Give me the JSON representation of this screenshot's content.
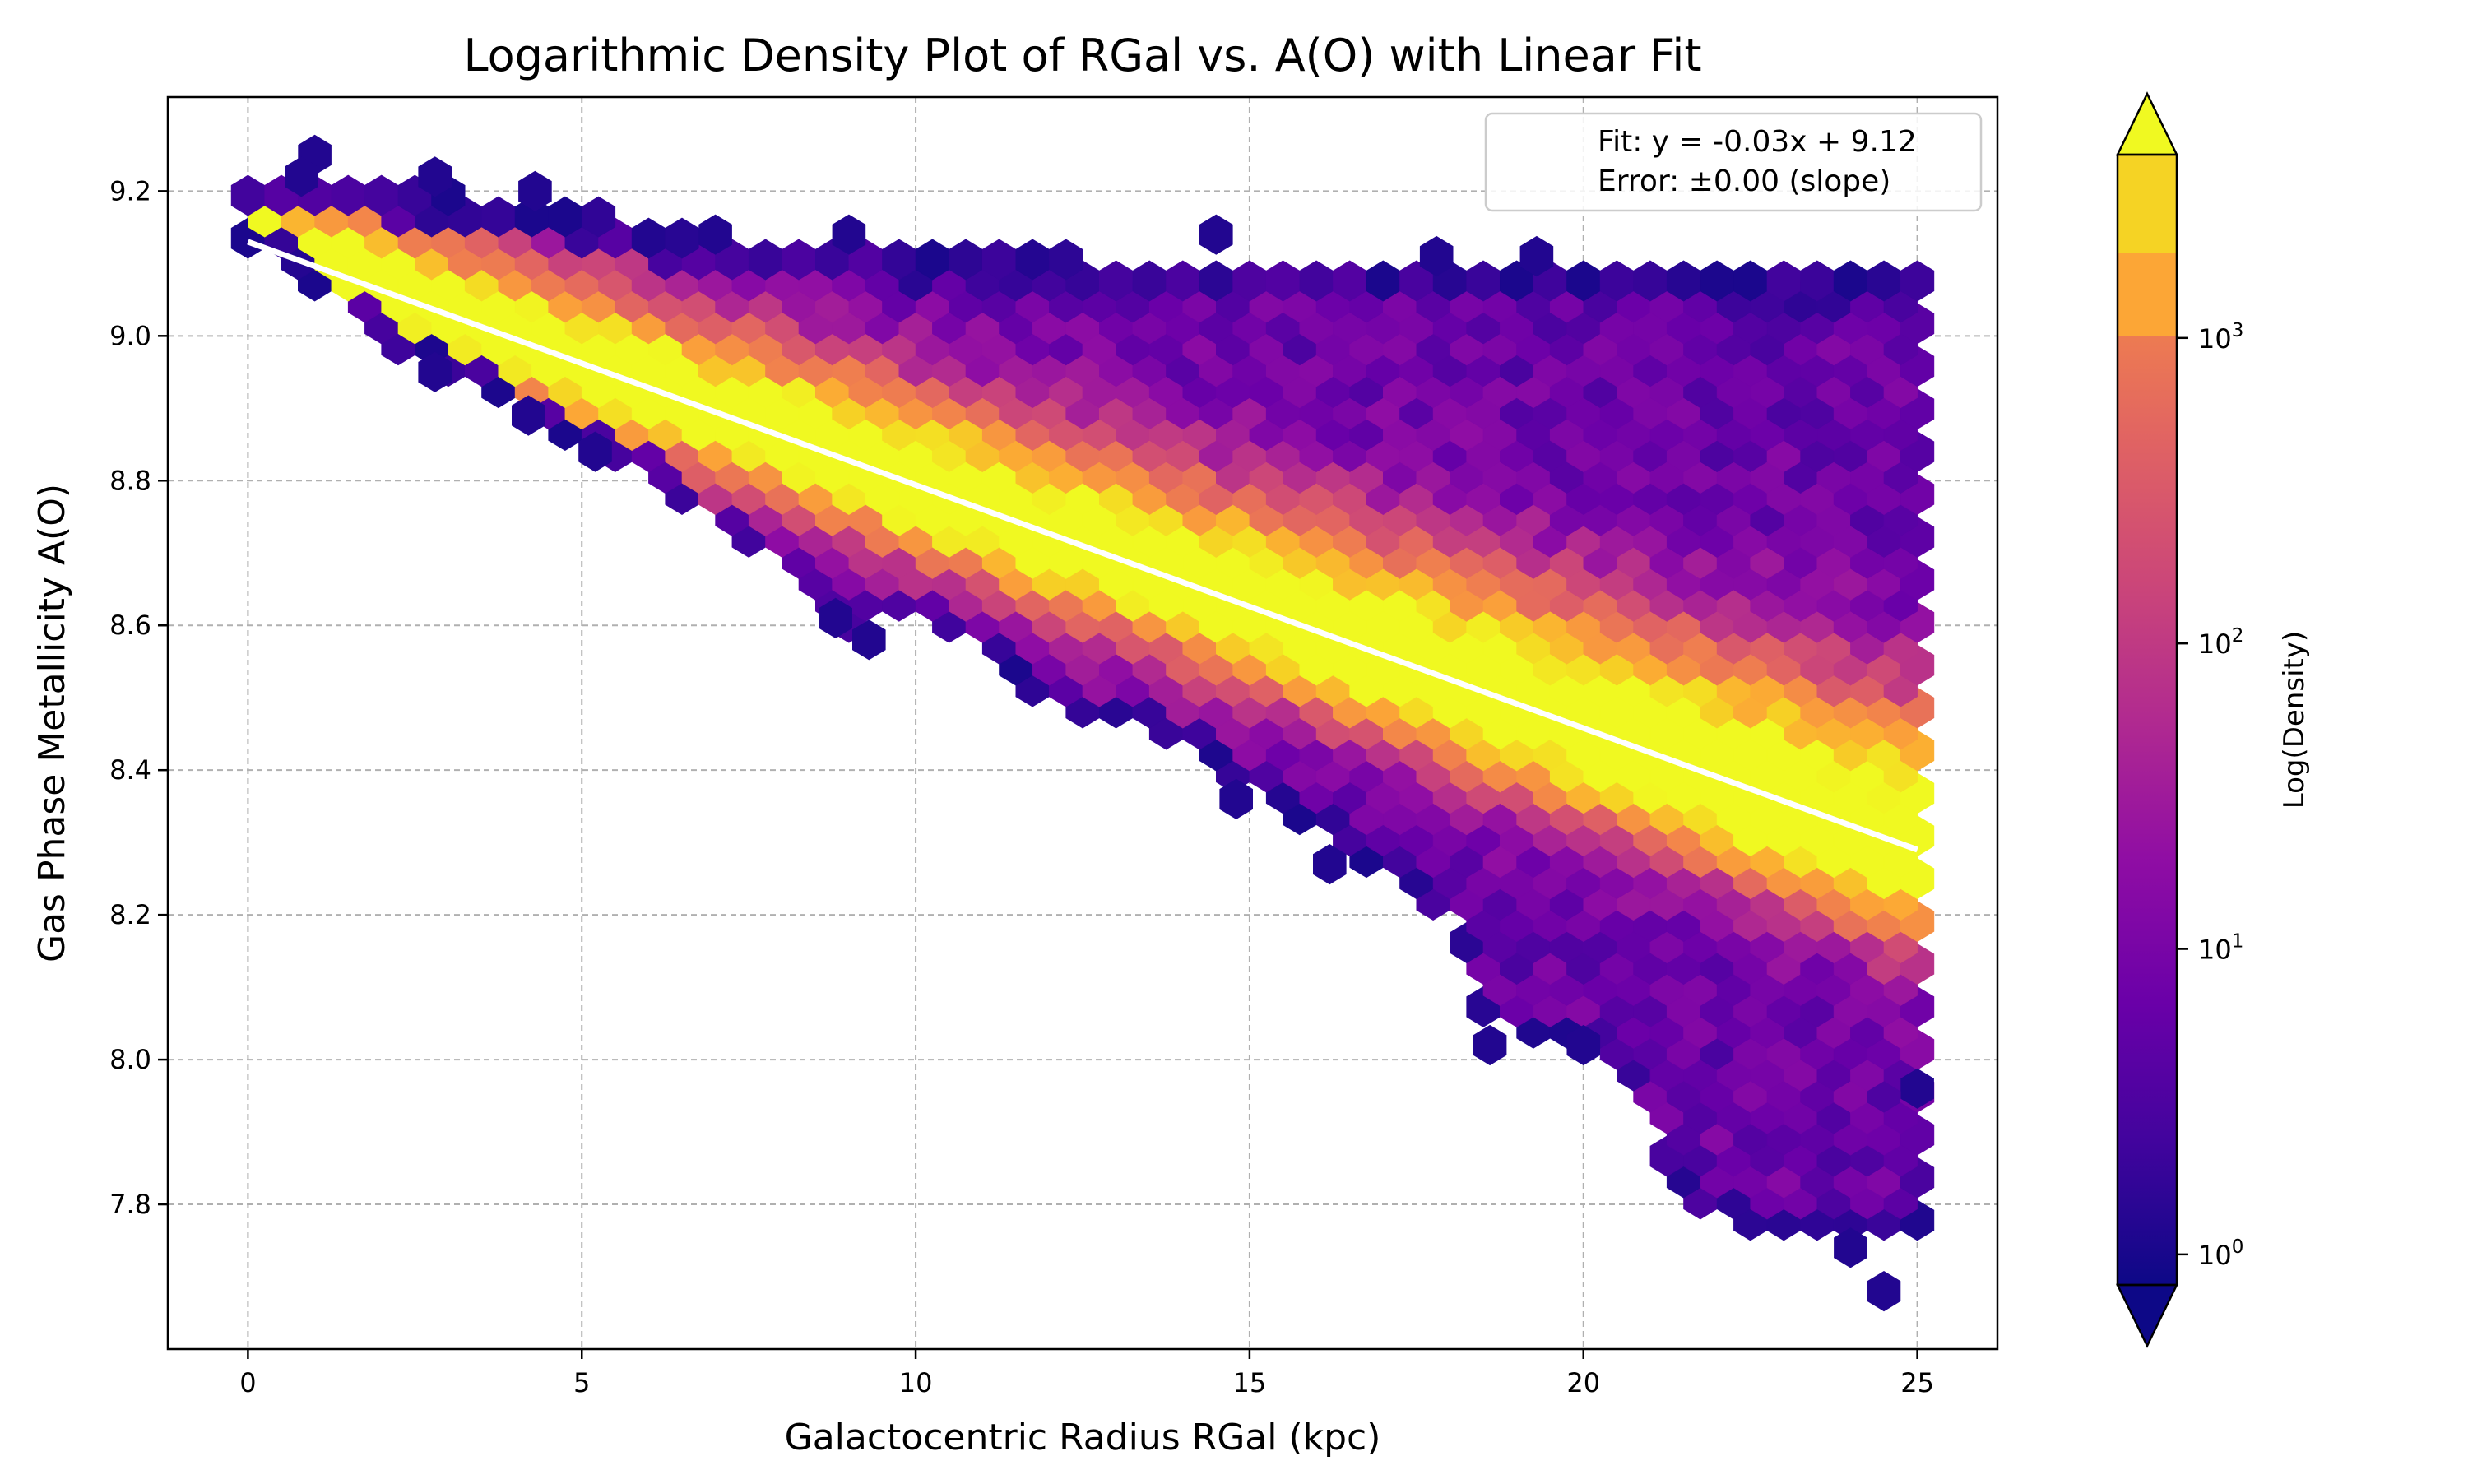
{
  "chart_data": {
    "type": "hexbin",
    "title": "Logarithmic Density Plot of RGal vs. A(O) with Linear Fit",
    "xlabel": "Galactocentric Radius RGal (kpc)",
    "ylabel": "Gas Phase Metallicity A(O)",
    "xlim": [
      -1.2,
      26.2
    ],
    "ylim": [
      7.6,
      9.33
    ],
    "xticks": [
      0,
      5,
      10,
      15,
      20,
      25
    ],
    "yticks": [
      7.8,
      8.0,
      8.2,
      8.4,
      8.6,
      8.8,
      9.0,
      9.2
    ],
    "grid": true,
    "grid_style": "dashed",
    "colormap": "plasma",
    "density_scale": "log",
    "hexbin_gridsize": 50,
    "colorbar": {
      "label": "Log(Density)",
      "ticks": [
        "10^0",
        "10^1",
        "10^2",
        "10^3"
      ],
      "tick_values": [
        0,
        1,
        2,
        3
      ],
      "range_log10": [
        -0.1,
        3.6
      ],
      "extend": "both"
    },
    "fit": {
      "slope": -0.03,
      "intercept": 9.12,
      "line_color": "#ffffff",
      "x_range": [
        0,
        25
      ],
      "y_range": [
        9.13,
        8.29
      ]
    },
    "legend": {
      "position": "upper right",
      "lines": [
        "Fit: y = -0.03x + 9.12",
        "Error: ±0.00 (slope)"
      ]
    },
    "density_model": {
      "x_min": 0,
      "x_max": 25,
      "ridge": [
        [
          0,
          9.13
        ],
        [
          25,
          8.29
        ]
      ],
      "upper_edge": [
        [
          0,
          9.2
        ],
        [
          1,
          9.22
        ],
        [
          5,
          9.17
        ],
        [
          7,
          9.13
        ],
        [
          10,
          9.11
        ],
        [
          15,
          9.1
        ],
        [
          20,
          9.09
        ],
        [
          25,
          9.08
        ]
      ],
      "lower_edge": [
        [
          0,
          9.13
        ],
        [
          2,
          9.0
        ],
        [
          4,
          8.9
        ],
        [
          6,
          8.8
        ],
        [
          8,
          8.68
        ],
        [
          9,
          8.6
        ],
        [
          10,
          8.62
        ],
        [
          11,
          8.56
        ],
        [
          12,
          8.49
        ],
        [
          13,
          8.47
        ],
        [
          14,
          8.44
        ],
        [
          15,
          8.38
        ],
        [
          16,
          8.32
        ],
        [
          17,
          8.26
        ],
        [
          18,
          8.2
        ],
        [
          18.5,
          8.05
        ],
        [
          19.5,
          8.03
        ],
        [
          20.5,
          8.0
        ],
        [
          21.5,
          7.82
        ],
        [
          22,
          7.78
        ],
        [
          24,
          7.75
        ],
        [
          25,
          7.76
        ]
      ],
      "peak_log_density": 3.5,
      "ridge_width_start": 0.05,
      "ridge_width_end": 0.1,
      "isolated_cells": [
        [
          1.0,
          9.25
        ],
        [
          0.8,
          9.22
        ],
        [
          2.8,
          9.22
        ],
        [
          4.3,
          9.2
        ],
        [
          7.0,
          9.14
        ],
        [
          9.0,
          9.14
        ],
        [
          14.5,
          9.14
        ],
        [
          17.8,
          9.11
        ],
        [
          19.3,
          9.11
        ],
        [
          2.8,
          8.95
        ],
        [
          4.2,
          8.89
        ],
        [
          5.2,
          8.84
        ],
        [
          8.8,
          8.61
        ],
        [
          9.3,
          8.58
        ],
        [
          14.8,
          8.36
        ],
        [
          16.2,
          8.27
        ],
        [
          18.6,
          8.02
        ],
        [
          20.0,
          8.02
        ],
        [
          24.0,
          7.74
        ],
        [
          24.5,
          7.68
        ],
        [
          25.0,
          7.96
        ]
      ]
    }
  }
}
